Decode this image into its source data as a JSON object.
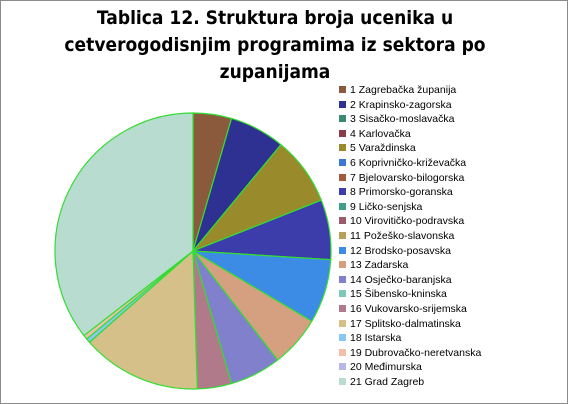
{
  "chart_data": {
    "type": "pie",
    "title_lines": [
      "Tablica 12. Struktura broja ucenika u",
      "cetverogodisnjim programima iz sektora po",
      "zupanijama"
    ],
    "categories": [
      "1 Zagrebačka županija",
      "2 Krapinsko-zagorska",
      "3 Sisačko-moslavačka",
      "4 Karlovačka",
      "5 Varaždinska",
      "6 Koprivničko-križevačka",
      "7 Bjelovarsko-bilogorska",
      "8 Primorsko-goranska",
      "9 Ličko-senjska",
      "10 Virovitičko-podravska",
      "11 Požeško-slavonska",
      "12 Brodsko-posavska",
      "13 Zadarska",
      "14 Osječko-baranjska",
      "15 Šibensko-kninska",
      "16 Vukovarsko-srijemska",
      "17 Splitsko-dalmatinska",
      "18 Istarska",
      "19 Dubrovačko-neretvanska",
      "20 Međimurska",
      "21 Grad Zagreb"
    ],
    "values": [
      4.5,
      6.5,
      0,
      0,
      8.0,
      0,
      0,
      7.0,
      0,
      0,
      0,
      7.5,
      6.0,
      6.0,
      0,
      4.0,
      14.0,
      0.5,
      0.5,
      0,
      35.5
    ],
    "colors": [
      "#8b5a3c",
      "#2e3192",
      "#3b8a6e",
      "#8b3a4a",
      "#998a2c",
      "#3a78d6",
      "#a05a3c",
      "#3c3caa",
      "#3fa08a",
      "#9c5a6a",
      "#b8a05a",
      "#3c8ce6",
      "#d4a080",
      "#8080cc",
      "#7ec8b8",
      "#b07a8a",
      "#d4c088",
      "#88c8f0",
      "#f0c0a8",
      "#b8b8e8",
      "#b8dcd0"
    ],
    "legend_position": "right"
  }
}
